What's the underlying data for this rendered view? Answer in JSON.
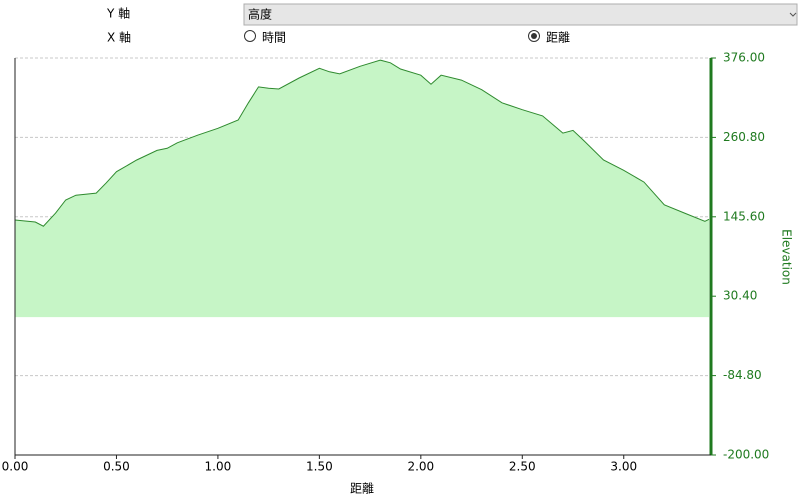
{
  "controls": {
    "y_axis_label": "Y 軸",
    "y_axis_value": "高度",
    "x_axis_label": "X 軸",
    "x_options": [
      {
        "label": "時間",
        "selected": false
      },
      {
        "label": "距離",
        "selected": true
      }
    ]
  },
  "chart_data": {
    "type": "area",
    "x": [
      0,
      0.05,
      0.1,
      0.14,
      0.2,
      0.25,
      0.3,
      0.4,
      0.45,
      0.5,
      0.6,
      0.7,
      0.75,
      0.8,
      0.9,
      1.0,
      1.1,
      1.15,
      1.2,
      1.25,
      1.3,
      1.4,
      1.5,
      1.55,
      1.6,
      1.7,
      1.8,
      1.85,
      1.9,
      2.0,
      2.05,
      2.1,
      2.2,
      2.3,
      2.4,
      2.5,
      2.6,
      2.7,
      2.75,
      2.8,
      2.9,
      3.0,
      3.1,
      3.2,
      3.3,
      3.4,
      3.42
    ],
    "values": [
      141,
      139.5,
      138,
      132,
      151,
      170,
      177,
      180,
      195,
      211,
      228,
      242,
      245,
      253,
      264,
      274,
      286,
      311,
      334,
      332,
      331,
      347,
      361,
      356,
      353,
      364,
      373,
      369,
      360,
      351,
      338,
      351,
      344,
      330,
      311,
      301,
      292,
      267,
      271,
      257,
      228,
      213,
      196,
      163,
      151,
      139,
      142
    ],
    "xlim": [
      0,
      3.43
    ],
    "ylim": [
      -200,
      376
    ],
    "xticks": [
      {
        "value": 0,
        "label": "0.00"
      },
      {
        "value": 0.5,
        "label": "0.50"
      },
      {
        "value": 1,
        "label": "1.00"
      },
      {
        "value": 1.5,
        "label": "1.50"
      },
      {
        "value": 2,
        "label": "2.00"
      },
      {
        "value": 2.5,
        "label": "2.50"
      },
      {
        "value": 3,
        "label": "3.00"
      }
    ],
    "yticks": [
      {
        "value": -200,
        "label": "-200.00"
      },
      {
        "value": -84.8,
        "label": "-84.80"
      },
      {
        "value": 30.4,
        "label": "30.40"
      },
      {
        "value": 145.6,
        "label": "145.60"
      },
      {
        "value": 260.8,
        "label": "260.80"
      },
      {
        "value": 376,
        "label": "376.00"
      }
    ],
    "xlabel": "距離",
    "ylabel": "Elevation",
    "color": "#2f8a2f",
    "fill_color": "#c6f5c6",
    "axis_color": "#1f7a1f",
    "grid": true
  }
}
